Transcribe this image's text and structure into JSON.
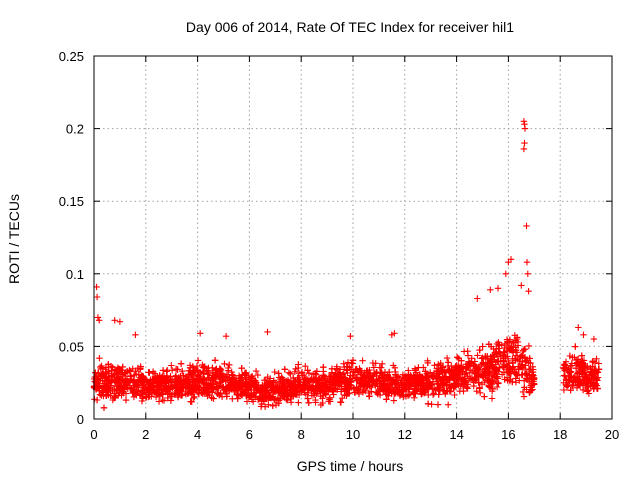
{
  "chart_data": {
    "type": "scatter",
    "title": "Day 006 of 2014, Rate Of TEC Index for receiver hil1",
    "xlabel": "GPS time / hours",
    "ylabel": "ROTI / TECUs",
    "xlim": [
      0,
      20
    ],
    "ylim": [
      0,
      0.25
    ],
    "x_ticks": [
      0,
      2,
      4,
      6,
      8,
      10,
      12,
      14,
      16,
      18,
      20
    ],
    "y_ticks": [
      0,
      0.05,
      0.1,
      0.15,
      0.2,
      0.25
    ],
    "grid": true,
    "marker": "+",
    "color": "#ff0000",
    "series": [
      {
        "name": "ROTI",
        "envelope": {
          "description": "approximate data envelope (hour, typical min, typical max)",
          "hours": [
            0,
            0.5,
            1,
            2,
            3,
            4,
            5,
            6,
            6.5,
            7,
            8,
            9,
            10,
            11,
            12,
            13,
            14,
            14.5,
            15,
            15.5,
            16,
            16.5,
            17,
            18,
            18.5,
            19,
            19.5
          ],
          "min": [
            0.005,
            0.006,
            0.006,
            0.006,
            0.007,
            0.008,
            0.008,
            0.007,
            0.006,
            0.007,
            0.008,
            0.008,
            0.009,
            0.008,
            0.007,
            0.008,
            0.009,
            0.01,
            0.01,
            0.01,
            0.012,
            0.012,
            0.012,
            0.012,
            0.012,
            0.012,
            0.012
          ],
          "max": [
            0.05,
            0.045,
            0.045,
            0.04,
            0.04,
            0.045,
            0.045,
            0.04,
            0.03,
            0.035,
            0.04,
            0.04,
            0.045,
            0.045,
            0.04,
            0.045,
            0.05,
            0.055,
            0.06,
            0.065,
            0.07,
            0.07,
            0.04,
            0.05,
            0.055,
            0.05,
            0.045
          ]
        },
        "gaps": [
          [
            17.0,
            18.1
          ]
        ],
        "notable_points": [
          {
            "x": 0.1,
            "y": 0.091
          },
          {
            "x": 0.12,
            "y": 0.084
          },
          {
            "x": 0.15,
            "y": 0.07
          },
          {
            "x": 0.2,
            "y": 0.068
          },
          {
            "x": 0.8,
            "y": 0.068
          },
          {
            "x": 1.0,
            "y": 0.067
          },
          {
            "x": 1.6,
            "y": 0.058
          },
          {
            "x": 4.1,
            "y": 0.059
          },
          {
            "x": 5.1,
            "y": 0.057
          },
          {
            "x": 6.7,
            "y": 0.06
          },
          {
            "x": 9.9,
            "y": 0.057
          },
          {
            "x": 11.5,
            "y": 0.058
          },
          {
            "x": 11.6,
            "y": 0.059
          },
          {
            "x": 14.8,
            "y": 0.083
          },
          {
            "x": 15.3,
            "y": 0.089
          },
          {
            "x": 15.6,
            "y": 0.09
          },
          {
            "x": 15.9,
            "y": 0.1
          },
          {
            "x": 16.0,
            "y": 0.108
          },
          {
            "x": 16.1,
            "y": 0.11
          },
          {
            "x": 16.6,
            "y": 0.205
          },
          {
            "x": 16.62,
            "y": 0.203
          },
          {
            "x": 16.64,
            "y": 0.2
          },
          {
            "x": 16.62,
            "y": 0.19
          },
          {
            "x": 16.6,
            "y": 0.186
          },
          {
            "x": 16.7,
            "y": 0.133
          },
          {
            "x": 16.72,
            "y": 0.108
          },
          {
            "x": 16.75,
            "y": 0.1
          },
          {
            "x": 16.5,
            "y": 0.092
          },
          {
            "x": 16.78,
            "y": 0.088
          },
          {
            "x": 18.7,
            "y": 0.063
          },
          {
            "x": 18.9,
            "y": 0.058
          },
          {
            "x": 19.3,
            "y": 0.055
          }
        ]
      }
    ]
  }
}
